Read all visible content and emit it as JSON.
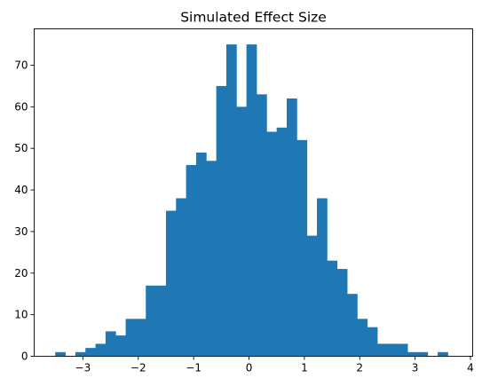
{
  "chart_data": {
    "type": "bar",
    "title": "Simulated Effect Size",
    "xlabel": "",
    "ylabel": "",
    "xlim": [
      -3.88,
      4.04
    ],
    "ylim": [
      0,
      78.75
    ],
    "xticks": [
      -3,
      -2,
      -1,
      0,
      1,
      2,
      3,
      4
    ],
    "yticks": [
      0,
      10,
      20,
      30,
      40,
      50,
      60,
      70
    ],
    "bin_start": -3.5,
    "bin_width": 0.1818,
    "counts": [
      1,
      0,
      1,
      2,
      3,
      6,
      5,
      9,
      9,
      17,
      17,
      35,
      38,
      46,
      49,
      47,
      65,
      75,
      60,
      75,
      63,
      54,
      55,
      62,
      52,
      29,
      38,
      23,
      21,
      15,
      9,
      7,
      3,
      3,
      3,
      1,
      1,
      0,
      1
    ],
    "bar_color": "#1f77b4",
    "grid": false,
    "legend": "none"
  }
}
